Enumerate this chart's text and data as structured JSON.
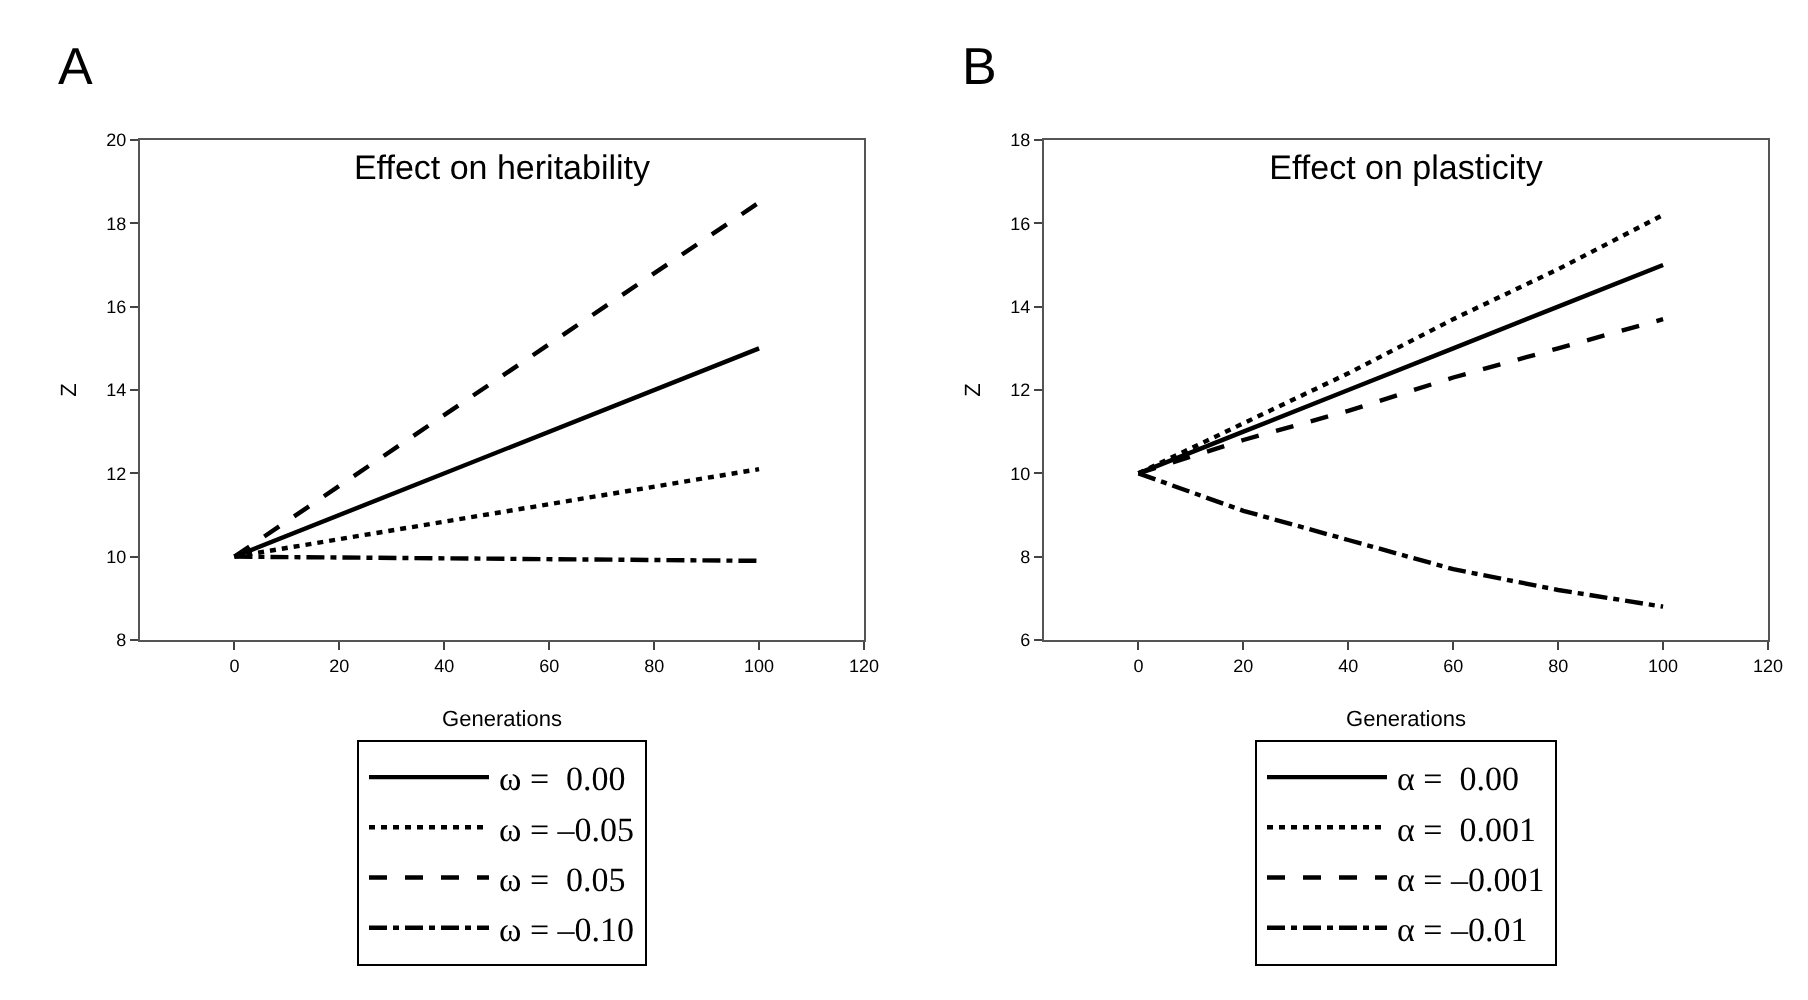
{
  "chart_data": [
    {
      "type": "line",
      "title": "Effect on heritability",
      "annotations": [
        "A"
      ],
      "xlabel": "Generations",
      "ylabel": "Z",
      "x": [
        0,
        100
      ],
      "xlim": [
        -18,
        120
      ],
      "xticks": [
        0,
        20,
        40,
        60,
        80,
        100,
        120
      ],
      "ylim": [
        8,
        20
      ],
      "yticks": [
        8,
        10,
        12,
        14,
        16,
        18,
        20
      ],
      "grid": false,
      "legend": "bottom",
      "marker": "none",
      "series": [
        {
          "name": "ω =  0.00",
          "color": "#000000",
          "line_style": "solid",
          "values": [
            10,
            15
          ]
        },
        {
          "name": "ω = –0.05",
          "color": "#000000",
          "line_style": "dotted",
          "values": [
            10,
            12.1
          ]
        },
        {
          "name": "ω =  0.05",
          "color": "#000000",
          "line_style": "dashed",
          "values": [
            10,
            18.5
          ]
        },
        {
          "name": "ω = –0.10",
          "color": "#000000",
          "line_style": "dashdot",
          "values": [
            10,
            9.9
          ]
        }
      ]
    },
    {
      "type": "line",
      "title": "Effect on plasticity",
      "annotations": [
        "B"
      ],
      "xlabel": "Generations",
      "ylabel": "Z",
      "x": [
        0,
        20,
        40,
        60,
        80,
        100
      ],
      "xlim": [
        -18,
        120
      ],
      "xticks": [
        0,
        20,
        40,
        60,
        80,
        100,
        120
      ],
      "ylim": [
        6,
        18
      ],
      "yticks": [
        6,
        8,
        10,
        12,
        14,
        16,
        18
      ],
      "grid": false,
      "legend": "bottom",
      "marker": "none",
      "series": [
        {
          "name": "α =  0.00",
          "color": "#000000",
          "line_style": "solid",
          "values": [
            10,
            11,
            12,
            13,
            14,
            15
          ]
        },
        {
          "name": "α =  0.001",
          "color": "#000000",
          "line_style": "dotted",
          "values": [
            10,
            11.2,
            12.4,
            13.7,
            14.9,
            16.2
          ]
        },
        {
          "name": "α = –0.001",
          "color": "#000000",
          "line_style": "dashed",
          "values": [
            10,
            10.8,
            11.5,
            12.3,
            13,
            13.7
          ]
        },
        {
          "name": "α = –0.01",
          "color": "#000000",
          "line_style": "dashdot",
          "values": [
            10,
            9.1,
            8.4,
            7.7,
            7.2,
            6.8
          ]
        }
      ]
    }
  ]
}
